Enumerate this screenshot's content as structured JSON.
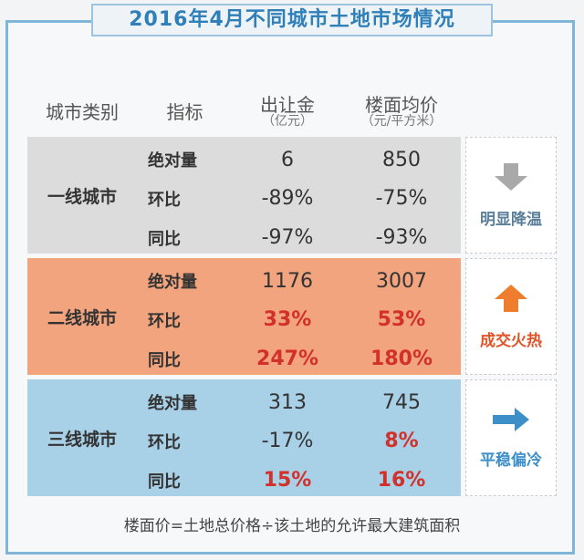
{
  "title": "2016年4月不同城市土地市场情况",
  "header": {
    "category": "城市类别",
    "metric": "指标",
    "land": {
      "main": "出让金",
      "sub": "（亿元）"
    },
    "price": {
      "main": "楼面均价",
      "sub": "（元/平方米）"
    }
  },
  "groups": [
    {
      "name": "一线城市",
      "metrics": [
        "绝对量",
        "环比",
        "同比"
      ],
      "land": [
        "6",
        "-89%",
        "-97%"
      ],
      "price": [
        "850",
        "-75%",
        "-93%"
      ],
      "trend": "明显降温"
    },
    {
      "name": "二线城市",
      "metrics": [
        "绝对量",
        "环比",
        "同比"
      ],
      "land": [
        "1176",
        "33%",
        "247%"
      ],
      "price": [
        "3007",
        "53%",
        "180%"
      ],
      "trend": "成交火热"
    },
    {
      "name": "三线城市",
      "metrics": [
        "绝对量",
        "环比",
        "同比"
      ],
      "land": [
        "313",
        "-17%",
        "15%"
      ],
      "price": [
        "745",
        "8%",
        "16%"
      ],
      "trend": "平稳偏冷"
    }
  ],
  "footnote": "楼面价=土地总价格÷该土地的允许最大建筑面积"
}
